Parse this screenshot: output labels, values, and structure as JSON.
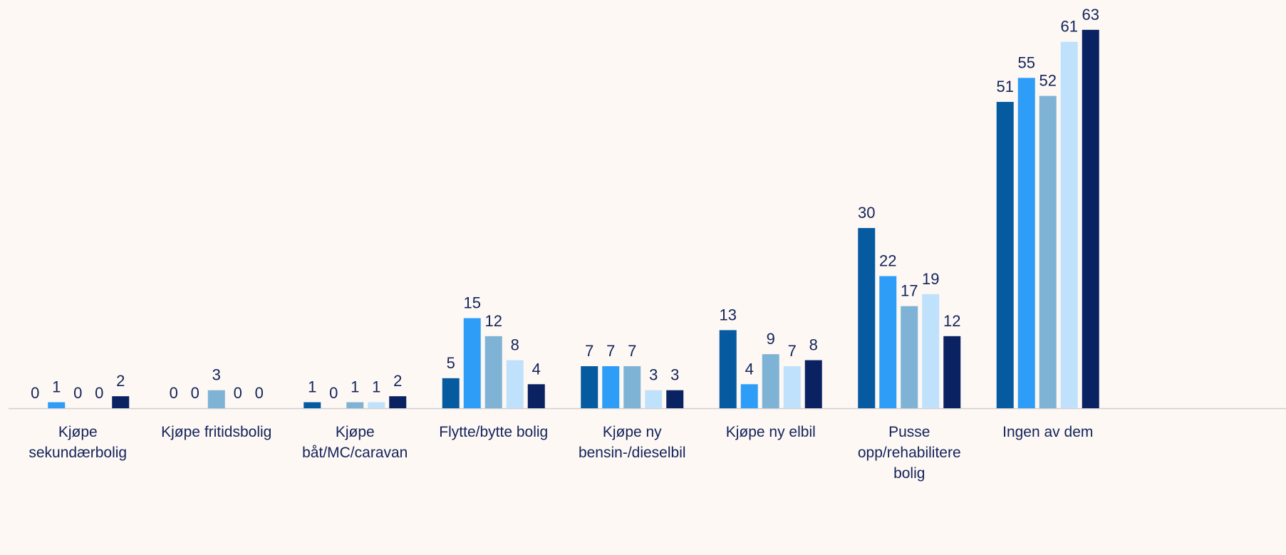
{
  "chart_data": {
    "type": "bar",
    "categories": [
      "Kjøpe sekundærbolig",
      "Kjøpe fritidsbolig",
      "Kjøpe båt/MC/caravan",
      "Flytte/bytte bolig",
      "Kjøpe ny bensin-/dieselbil",
      "Kjøpe ny elbil",
      "Pusse opp/rehabilitere bolig",
      "Ingen av dem"
    ],
    "series": [
      {
        "color": "#065a9f",
        "values": [
          0,
          0,
          1,
          5,
          7,
          13,
          30,
          51
        ]
      },
      {
        "color": "#2e9df7",
        "values": [
          1,
          0,
          0,
          15,
          7,
          4,
          22,
          55
        ]
      },
      {
        "color": "#7fb3d5",
        "values": [
          0,
          3,
          1,
          12,
          7,
          9,
          17,
          52
        ]
      },
      {
        "color": "#bfe1fb",
        "values": [
          0,
          0,
          1,
          8,
          3,
          7,
          19,
          61
        ]
      },
      {
        "color": "#0b2262",
        "values": [
          2,
          0,
          2,
          4,
          3,
          8,
          12,
          63
        ]
      }
    ],
    "ylim": [
      0,
      65
    ]
  }
}
